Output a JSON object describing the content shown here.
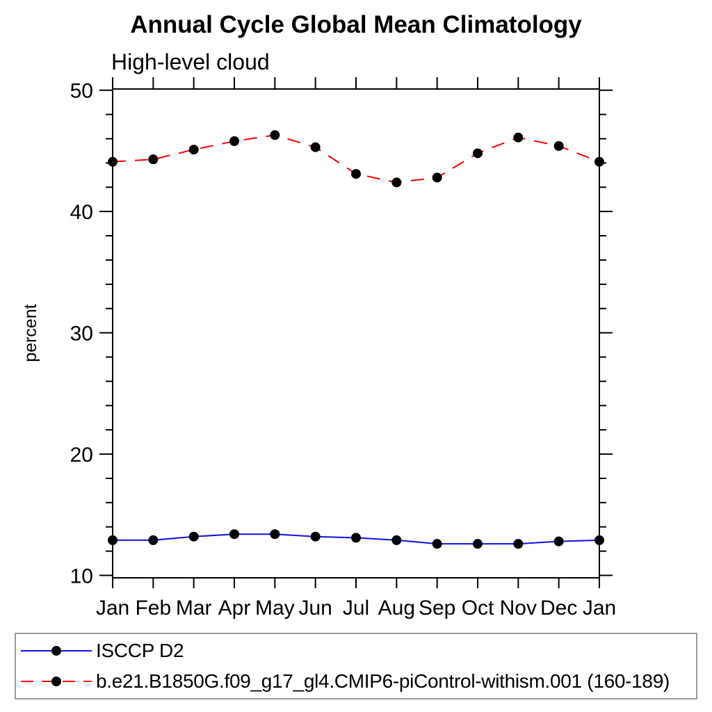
{
  "chart_data": {
    "type": "line",
    "title": "Annual Cycle Global Mean Climatology",
    "subtitle": "High-level cloud",
    "ylabel": "percent",
    "xlabel": "",
    "categories": [
      "Jan",
      "Feb",
      "Mar",
      "Apr",
      "May",
      "Jun",
      "Jul",
      "Aug",
      "Sep",
      "Oct",
      "Nov",
      "Dec",
      "Jan"
    ],
    "ylim": [
      10,
      50
    ],
    "yticks_major": [
      10,
      20,
      30,
      40,
      50
    ],
    "ytick_minor_step": 2,
    "grid": false,
    "frame": "boxed-outward-ticks",
    "legend_position": "bottom-left-boxed",
    "marker": "filled-circle",
    "marker_color": "#000000",
    "axis_color": "#000000",
    "legend_border_color": "#9b9b9b",
    "series": [
      {
        "name": "ISCCP D2",
        "color": "#0f0fe6",
        "style": "solid",
        "values": [
          12.9,
          12.9,
          13.2,
          13.4,
          13.4,
          13.2,
          13.1,
          12.9,
          12.6,
          12.6,
          12.6,
          12.8,
          12.9
        ]
      },
      {
        "name": "b.e21.B1850G.f09_g17_gl4.CMIP6-piControl-withism.001 (160-189)",
        "color": "#ff0000",
        "style": "dashed",
        "values": [
          44.1,
          44.3,
          45.1,
          45.8,
          46.3,
          45.3,
          43.1,
          42.4,
          42.8,
          44.8,
          46.1,
          45.4,
          44.1
        ]
      }
    ]
  }
}
